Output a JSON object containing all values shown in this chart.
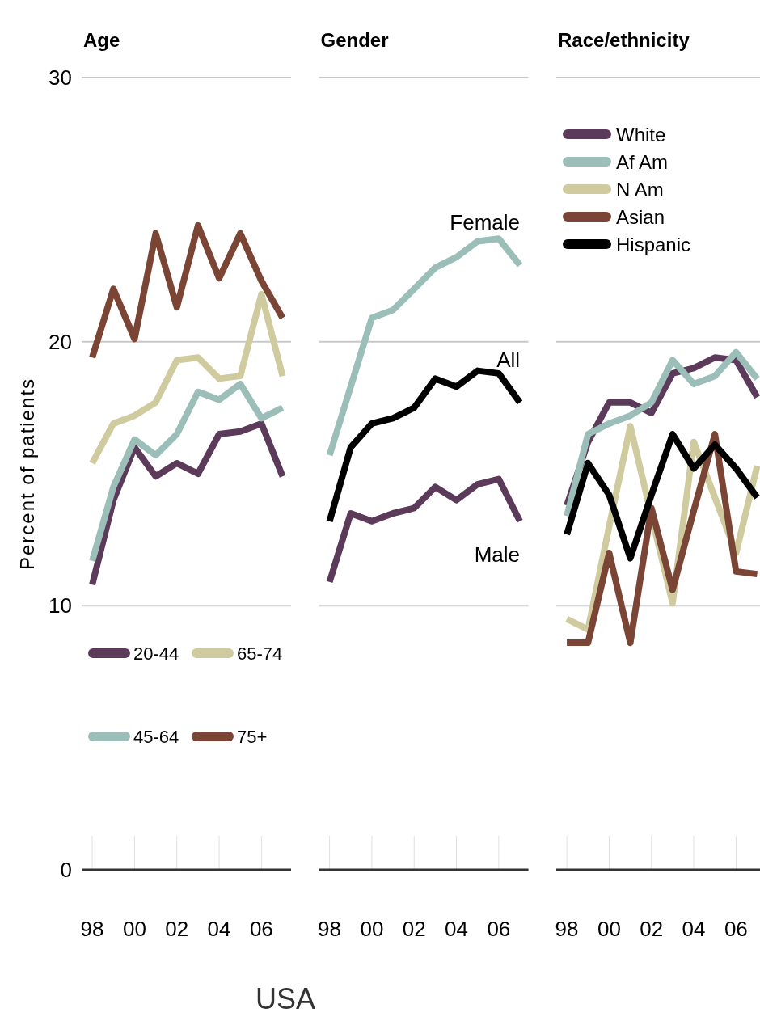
{
  "chart_data": [
    {
      "type": "line",
      "title": "Age",
      "ylabel": "Percent of patients",
      "annotations": [
        "USA"
      ],
      "x": [
        1998,
        1999,
        2000,
        2001,
        2002,
        2003,
        2004,
        2005,
        2006,
        2007
      ],
      "xlim": [
        1997.5,
        2007.4
      ],
      "xticks": [
        {
          "value": 1998,
          "label": "98"
        },
        {
          "value": 2000,
          "label": "00"
        },
        {
          "value": 2002,
          "label": "02"
        },
        {
          "value": 2004,
          "label": "04"
        },
        {
          "value": 2006,
          "label": "06"
        }
      ],
      "ylim": [
        0,
        30
      ],
      "yticks": [
        0,
        10,
        20,
        30
      ],
      "grid": "y",
      "legend": "bottom left",
      "series": [
        {
          "name": "20-44",
          "color": "#5c3a5a",
          "values": [
            10.8,
            14.0,
            16.0,
            14.9,
            15.4,
            15.0,
            16.5,
            16.6,
            16.9,
            14.9
          ]
        },
        {
          "name": "45-64",
          "color": "#9bbfb8",
          "values": [
            11.7,
            14.5,
            16.3,
            15.7,
            16.5,
            18.1,
            17.8,
            18.4,
            17.1,
            17.5
          ]
        },
        {
          "name": "65-74",
          "color": "#cfcb9e",
          "values": [
            15.4,
            16.9,
            17.2,
            17.7,
            19.3,
            19.4,
            18.6,
            18.7,
            21.8,
            18.7
          ]
        },
        {
          "name": "75+",
          "color": "#7b4535",
          "values": [
            19.4,
            22.0,
            20.1,
            24.1,
            21.3,
            24.4,
            22.4,
            24.1,
            22.3,
            20.9
          ]
        }
      ]
    },
    {
      "type": "line",
      "title": "Gender",
      "x": [
        1998,
        1999,
        2000,
        2001,
        2002,
        2003,
        2004,
        2005,
        2006,
        2007
      ],
      "xlim": [
        1997.5,
        2007.4
      ],
      "xticks": [
        {
          "value": 1998,
          "label": "98"
        },
        {
          "value": 2000,
          "label": "00"
        },
        {
          "value": 2002,
          "label": "02"
        },
        {
          "value": 2004,
          "label": "04"
        },
        {
          "value": 2006,
          "label": "06"
        }
      ],
      "ylim": [
        0,
        30
      ],
      "yticks": [
        0,
        10,
        20,
        30
      ],
      "grid": "y",
      "tick_labels": "x",
      "series": [
        {
          "name": "Female",
          "color": "#9bbfb8",
          "values": [
            15.7,
            18.3,
            20.9,
            21.2,
            22.0,
            22.8,
            23.2,
            23.8,
            23.9,
            22.9
          ]
        },
        {
          "name": "All",
          "color": "#000000",
          "values": [
            13.2,
            16.0,
            16.9,
            17.1,
            17.5,
            18.6,
            18.3,
            18.9,
            18.8,
            17.7
          ]
        },
        {
          "name": "Male",
          "color": "#5c3a5a",
          "values": [
            10.9,
            13.5,
            13.2,
            13.5,
            13.7,
            14.5,
            14.0,
            14.6,
            14.8,
            13.2
          ]
        }
      ]
    },
    {
      "type": "line",
      "title": "Race/ethnicity",
      "x": [
        1998,
        1999,
        2000,
        2001,
        2002,
        2003,
        2004,
        2005,
        2006,
        2007
      ],
      "xlim": [
        1997.5,
        2007.4
      ],
      "xticks": [
        {
          "value": 1998,
          "label": "98"
        },
        {
          "value": 2000,
          "label": "00"
        },
        {
          "value": 2002,
          "label": "02"
        },
        {
          "value": 2004,
          "label": "04"
        },
        {
          "value": 2006,
          "label": "06"
        }
      ],
      "ylim": [
        0,
        30
      ],
      "yticks": [
        0,
        10,
        20,
        30
      ],
      "grid": "y",
      "tick_labels": "x",
      "legend": "top left",
      "series": [
        {
          "name": "White",
          "color": "#5c3a5a",
          "values": [
            13.8,
            16.2,
            17.7,
            17.7,
            17.3,
            18.8,
            19.0,
            19.4,
            19.3,
            17.9
          ]
        },
        {
          "name": "Af Am",
          "color": "#9bbfb8",
          "values": [
            13.4,
            16.5,
            16.9,
            17.2,
            17.7,
            19.3,
            18.4,
            18.7,
            19.6,
            18.6
          ]
        },
        {
          "name": "N Am",
          "color": "#cfcb9e",
          "values": [
            9.5,
            9.1,
            13.0,
            16.8,
            13.4,
            10.1,
            16.2,
            14.1,
            12.0,
            15.3
          ]
        },
        {
          "name": "Asian",
          "color": "#7b4535",
          "values": [
            8.6,
            8.6,
            12.0,
            8.6,
            13.7,
            10.6,
            13.6,
            16.5,
            11.3,
            11.2
          ]
        },
        {
          "name": "Hispanic",
          "color": "#000000",
          "values": [
            12.7,
            15.4,
            14.2,
            11.8,
            14.2,
            16.5,
            15.2,
            16.1,
            15.2,
            14.1
          ]
        }
      ]
    }
  ]
}
